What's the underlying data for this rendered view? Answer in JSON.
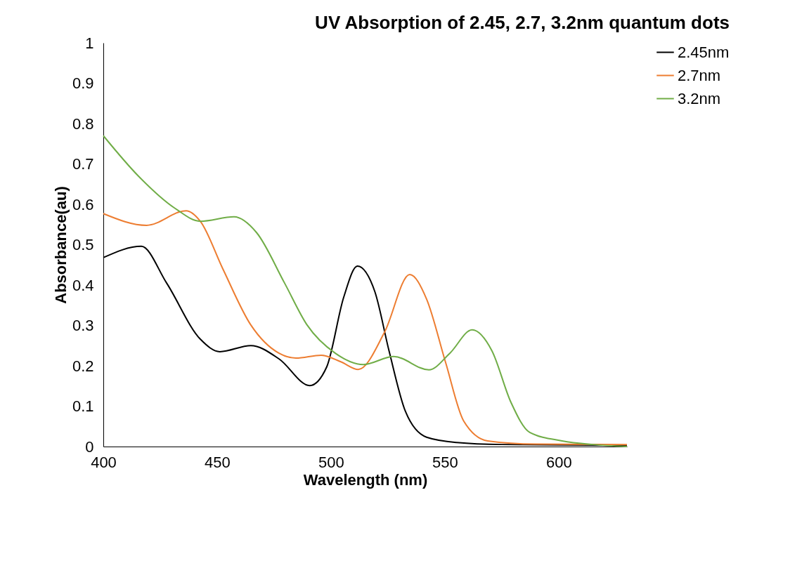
{
  "chart_data": {
    "type": "line",
    "title": "UV Absorption of 2.45, 2.7, 3.2nm quantum dots",
    "xlabel": "Wavelength (nm)",
    "ylabel": "Absorbance(au)",
    "xlim": [
      400,
      630
    ],
    "xticks": [
      400,
      450,
      500,
      550,
      600
    ],
    "ylim": [
      0,
      1
    ],
    "yticks": [
      0,
      0.1,
      0.2,
      0.3,
      0.4,
      0.5,
      0.6,
      0.7,
      0.8,
      0.9,
      1
    ],
    "grid": false,
    "legend": "right",
    "marker": "none",
    "line_style": "solid",
    "series": [
      {
        "name": "2.45nm",
        "color": "#000000",
        "x": [
          400,
          416.7,
          427.8,
          442.6,
          451.2,
          464.8,
          477.2,
          490.7,
          498.1,
          505.6,
          511.6,
          519.3,
          525.5,
          532.7,
          542,
          555.2,
          575,
          600,
          630
        ],
        "values": [
          0.468,
          0.496,
          0.405,
          0.266,
          0.235,
          0.25,
          0.217,
          0.151,
          0.197,
          0.37,
          0.447,
          0.383,
          0.237,
          0.087,
          0.023,
          0.01,
          0.005,
          0.004,
          0.003
        ]
      },
      {
        "name": "2.7nm",
        "color": "#ed7d31",
        "x": [
          400,
          419,
          436.4,
          442.6,
          452.5,
          464.8,
          477.2,
          484.6,
          495.7,
          504.3,
          512,
          523.5,
          534.6,
          542,
          550.3,
          558.3,
          568.8,
          590,
          630
        ],
        "values": [
          0.577,
          0.548,
          0.584,
          0.558,
          0.44,
          0.301,
          0.231,
          0.219,
          0.226,
          0.21,
          0.191,
          0.283,
          0.426,
          0.365,
          0.209,
          0.063,
          0.014,
          0.006,
          0.005
        ]
      },
      {
        "name": "3.2nm",
        "color": "#70ad47",
        "x": [
          400,
          415.4,
          431.5,
          442.6,
          457.4,
          467.3,
          479.6,
          489.5,
          501.9,
          514.2,
          527.5,
          543,
          552.2,
          562,
          570.7,
          579,
          587.3,
          601.5,
          615,
          630
        ],
        "values": [
          0.77,
          0.67,
          0.59,
          0.558,
          0.569,
          0.53,
          0.405,
          0.301,
          0.231,
          0.203,
          0.223,
          0.19,
          0.231,
          0.289,
          0.237,
          0.11,
          0.035,
          0.014,
          0.005,
          0.0
        ]
      }
    ]
  }
}
